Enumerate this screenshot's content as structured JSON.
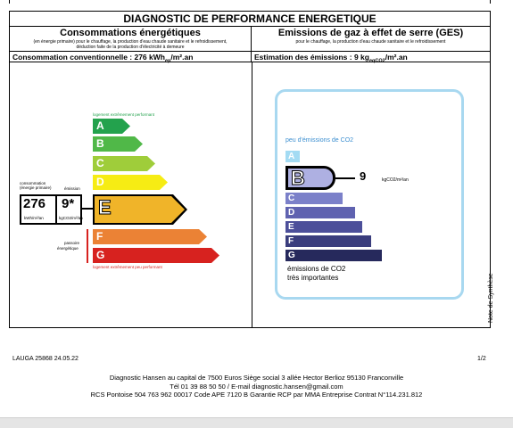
{
  "document": {
    "title": "DIAGNOSTIC DE PERFORMANCE ENERGETIQUE",
    "energy": {
      "heading": "Consommations énergétiques",
      "subheading_1": "(en énergie primaire) pour le chauffage, la production d'eau chaude sanitaire et le refroidissement,",
      "subheading_2": "déduction faite de la production d'électricité à demeure",
      "summary_prefix": "Consommation conventionnelle : 276 kWh",
      "summary_sub": "ep",
      "summary_suffix": "/m².an",
      "label_top": "logement extrêmement performant",
      "label_bottom": "logement extrêmement peu performant",
      "label_consumption_1": "consommation",
      "label_consumption_2": "(énergie primaire)",
      "label_emission": "émission",
      "label_passoire_1": "passoire",
      "label_passoire_2": "énergétique",
      "value_consumption": "276",
      "value_emission": "9*",
      "unit_consumption": "kWh/m²/an",
      "unit_emission": "kgCO2/m²/an",
      "classes": [
        {
          "letter": "A",
          "color": "#23a24d"
        },
        {
          "letter": "B",
          "color": "#50b848"
        },
        {
          "letter": "C",
          "color": "#9fcd3a"
        },
        {
          "letter": "D",
          "color": "#f6ec14"
        },
        {
          "letter": "E",
          "color": "#f0b429"
        },
        {
          "letter": "F",
          "color": "#eb8235"
        },
        {
          "letter": "G",
          "color": "#d7221f"
        }
      ],
      "current_class": "E"
    },
    "ges": {
      "heading": "Emissions de gaz à effet de serre (GES)",
      "subheading": "pour le chauffage, la production d'eau chaude sanitaire et le refroidissement",
      "summary_prefix": "Estimation des émissions : 9 kg",
      "summary_sub": "eqCO2",
      "summary_suffix": "/m².an",
      "label_top": "peu d'émissions de CO2",
      "label_bottom_1": "émissions de CO2",
      "label_bottom_2": "très importantes",
      "value": "9",
      "unit": "kgCO2/m²/an",
      "classes": [
        {
          "letter": "A",
          "color": "#a3dbf3"
        },
        {
          "letter": "B",
          "color": "#aeb0e2"
        },
        {
          "letter": "C",
          "color": "#7b80c9"
        },
        {
          "letter": "D",
          "color": "#5f62b0"
        },
        {
          "letter": "E",
          "color": "#4c4f9a"
        },
        {
          "letter": "F",
          "color": "#3a3d7d"
        },
        {
          "letter": "G",
          "color": "#26295c"
        }
      ],
      "current_class": "B"
    },
    "side_note": "Note de Synthèse",
    "reference": "LAUGA 25868 24.05.22",
    "page": "1/2",
    "footer_1": "Diagnostic Hansen au capital de 7500 Euros Siège social 3 allée Hector Berlioz 95130 Franconville",
    "footer_2": "Tél 01 39 88 50 50 / E-mail diagnostic.hansen@gmail.com",
    "footer_3": "RCS Pontoise 504 763 962 00017 Code APE 7120 B Garantie RCP par MMA Entreprise Contrat N°114.231.812"
  }
}
